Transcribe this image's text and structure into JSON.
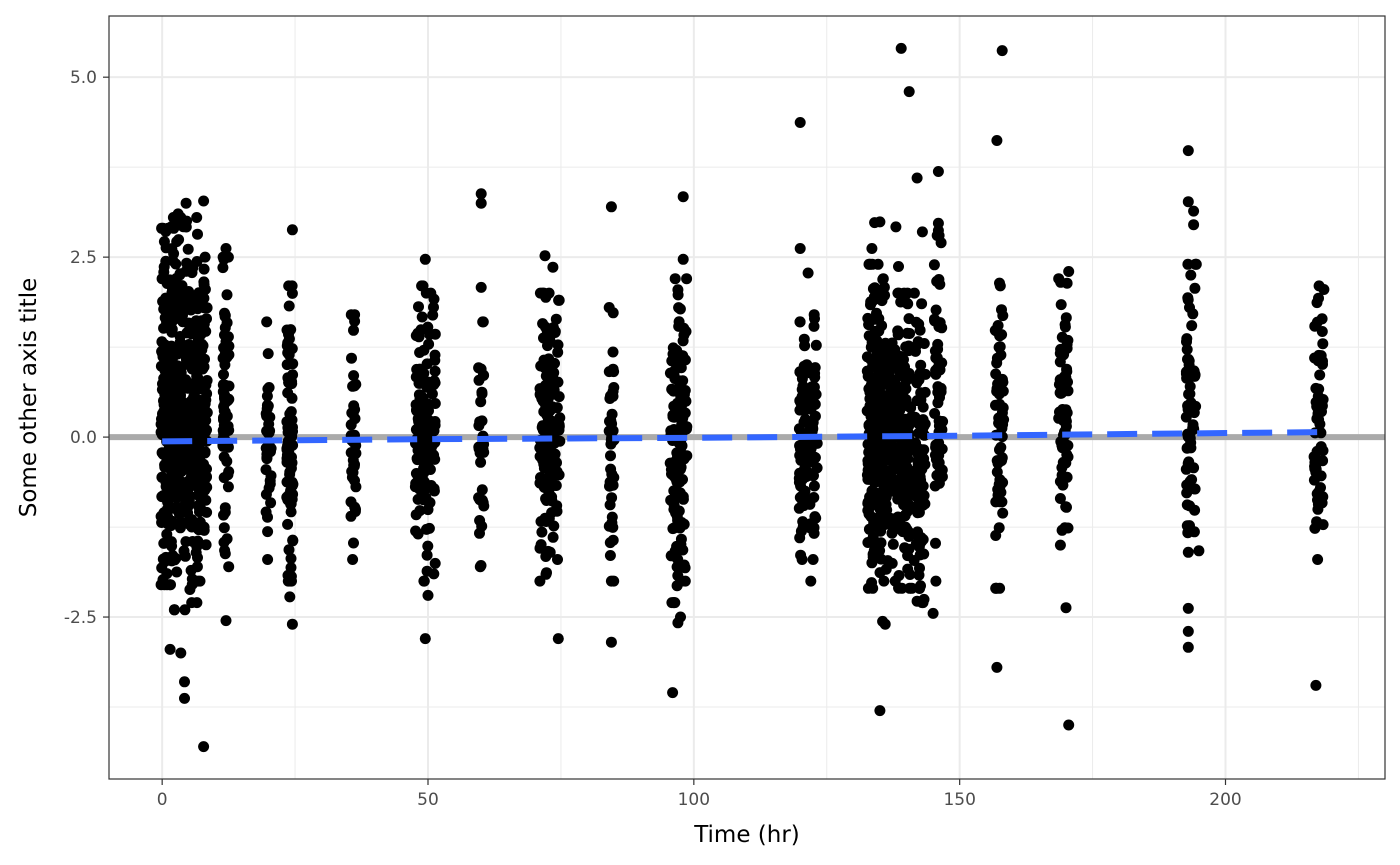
{
  "chart_data": {
    "type": "scatter",
    "xlabel": "Time (hr)",
    "ylabel": "Some other axis title",
    "xlim": [
      -10,
      230
    ],
    "ylim": [
      -4.75,
      5.85
    ],
    "x_ticks": [
      0,
      50,
      100,
      150,
      200
    ],
    "x_tick_labels": [
      "0",
      "50",
      "100",
      "150",
      "200"
    ],
    "y_ticks": [
      -2.5,
      0,
      2.5,
      5
    ],
    "y_tick_labels": [
      "-2.5",
      "0.0",
      "2.5",
      "5.0"
    ],
    "x_minor_ticks": [
      25,
      75,
      125,
      175,
      225
    ],
    "y_minor_ticks": [
      -3.75,
      -1.25,
      1.25,
      3.75
    ],
    "grid": true,
    "colors": {
      "points": "#000000",
      "reference_line": "#aaaaaa",
      "trend_line": "#3366ff",
      "grid": "#ebebeb",
      "panel_border": "#333333"
    },
    "reference_line": {
      "y": 0
    },
    "trend_line": {
      "style": "dashed",
      "x": [
        0,
        50,
        100,
        150,
        218
      ],
      "y": [
        -0.06,
        -0.03,
        -0.01,
        0.02,
        0.07
      ]
    },
    "clusters": [
      {
        "x": 1,
        "spread": 1.2,
        "n": 170,
        "ymin": -2.05,
        "ymax": 2.9
      },
      {
        "x": 3,
        "spread": 1.3,
        "n": 170,
        "ymin": -2.4,
        "ymax": 3.05
      },
      {
        "x": 5.5,
        "spread": 1.3,
        "n": 150,
        "ymin": -2.3,
        "ymax": 3.0
      },
      {
        "x": 7.5,
        "spread": 1.0,
        "n": 110,
        "ymin": -2.0,
        "ymax": 2.5
      },
      {
        "x": 12,
        "spread": 0.6,
        "n": 70,
        "ymin": -1.8,
        "ymax": 2.5
      },
      {
        "x": 20,
        "spread": 0.5,
        "n": 35,
        "ymin": -1.7,
        "ymax": 1.6
      },
      {
        "x": 24,
        "spread": 0.6,
        "n": 90,
        "ymin": -2.0,
        "ymax": 2.1
      },
      {
        "x": 36,
        "spread": 0.5,
        "n": 45,
        "ymin": -1.7,
        "ymax": 1.7
      },
      {
        "x": 48.5,
        "spread": 0.9,
        "n": 90,
        "ymin": -2.0,
        "ymax": 2.1
      },
      {
        "x": 50.5,
        "spread": 0.9,
        "n": 70,
        "ymin": -1.9,
        "ymax": 2.0
      },
      {
        "x": 60,
        "spread": 0.5,
        "n": 35,
        "ymin": -1.8,
        "ymax": 1.6
      },
      {
        "x": 72,
        "spread": 1.0,
        "n": 100,
        "ymin": -2.0,
        "ymax": 2.0
      },
      {
        "x": 74,
        "spread": 0.8,
        "n": 50,
        "ymin": -1.7,
        "ymax": 1.9
      },
      {
        "x": 84.5,
        "spread": 0.5,
        "n": 40,
        "ymin": -2.0,
        "ymax": 1.8
      },
      {
        "x": 96.5,
        "spread": 1.0,
        "n": 90,
        "ymin": -2.3,
        "ymax": 2.2
      },
      {
        "x": 98,
        "spread": 0.7,
        "n": 50,
        "ymin": -2.0,
        "ymax": 2.2
      },
      {
        "x": 120.5,
        "spread": 0.8,
        "n": 70,
        "ymin": -1.7,
        "ymax": 1.6
      },
      {
        "x": 122.5,
        "spread": 0.7,
        "n": 45,
        "ymin": -1.7,
        "ymax": 1.7
      },
      {
        "x": 134,
        "spread": 1.4,
        "n": 170,
        "ymin": -2.1,
        "ymax": 2.4
      },
      {
        "x": 136.5,
        "spread": 1.4,
        "n": 160,
        "ymin": -2.0,
        "ymax": 2.2
      },
      {
        "x": 139.5,
        "spread": 1.3,
        "n": 150,
        "ymin": -2.1,
        "ymax": 2.0
      },
      {
        "x": 142.5,
        "spread": 1.1,
        "n": 90,
        "ymin": -2.3,
        "ymax": 2.0
      },
      {
        "x": 146,
        "spread": 0.8,
        "n": 60,
        "ymin": -2.0,
        "ymax": 2.8
      },
      {
        "x": 157.5,
        "spread": 0.8,
        "n": 60,
        "ymin": -2.1,
        "ymax": 2.1
      },
      {
        "x": 169.5,
        "spread": 0.9,
        "n": 70,
        "ymin": -1.5,
        "ymax": 2.2
      },
      {
        "x": 193.5,
        "spread": 0.9,
        "n": 70,
        "ymin": -1.6,
        "ymax": 2.4
      },
      {
        "x": 217.5,
        "spread": 0.9,
        "n": 60,
        "ymin": -1.7,
        "ymax": 2.1
      }
    ],
    "outliers": [
      [
        1.5,
        -2.95
      ],
      [
        3.5,
        -3.0
      ],
      [
        4.2,
        -3.4
      ],
      [
        4.2,
        -3.63
      ],
      [
        7.8,
        -4.3
      ],
      [
        2.0,
        2.45
      ],
      [
        4.5,
        3.25
      ],
      [
        7.8,
        3.28
      ],
      [
        3.0,
        3.1
      ],
      [
        6.5,
        3.05
      ],
      [
        24.5,
        2.88
      ],
      [
        24.5,
        -2.6
      ],
      [
        12,
        -2.55
      ],
      [
        12,
        2.62
      ],
      [
        24,
        -2.22
      ],
      [
        49.5,
        2.47
      ],
      [
        49.5,
        -2.8
      ],
      [
        50,
        -2.2
      ],
      [
        60,
        3.38
      ],
      [
        60,
        3.25
      ],
      [
        60,
        2.08
      ],
      [
        72,
        2.52
      ],
      [
        73.5,
        2.36
      ],
      [
        74.5,
        -2.8
      ],
      [
        84.5,
        3.2
      ],
      [
        84.5,
        -2.85
      ],
      [
        84.5,
        -2.0
      ],
      [
        96,
        -3.55
      ],
      [
        98,
        3.34
      ],
      [
        98,
        2.47
      ],
      [
        97,
        -2.58
      ],
      [
        97.5,
        -2.5
      ],
      [
        120,
        4.37
      ],
      [
        120,
        2.62
      ],
      [
        121.5,
        2.28
      ],
      [
        122,
        -2.0
      ],
      [
        133.5,
        2.62
      ],
      [
        134,
        2.98
      ],
      [
        135,
        2.99
      ],
      [
        135,
        -3.8
      ],
      [
        136,
        -2.6
      ],
      [
        135.5,
        -2.56
      ],
      [
        138,
        2.92
      ],
      [
        138.5,
        2.37
      ],
      [
        139,
        5.4
      ],
      [
        140.5,
        4.8
      ],
      [
        142,
        3.6
      ],
      [
        143,
        2.85
      ],
      [
        141,
        -2.1
      ],
      [
        142,
        -2.28
      ],
      [
        145,
        -2.45
      ],
      [
        146,
        3.69
      ],
      [
        146,
        2.97
      ],
      [
        146,
        2.87
      ],
      [
        146.5,
        2.7
      ],
      [
        157,
        4.12
      ],
      [
        158,
        5.37
      ],
      [
        157,
        -3.2
      ],
      [
        157.5,
        2.14
      ],
      [
        170,
        -2.37
      ],
      [
        170.5,
        -4.0
      ],
      [
        170.5,
        2.3
      ],
      [
        169,
        2.15
      ],
      [
        193,
        3.98
      ],
      [
        193,
        3.27
      ],
      [
        194,
        3.14
      ],
      [
        194,
        2.95
      ],
      [
        194.5,
        2.4
      ],
      [
        193,
        -2.38
      ],
      [
        193,
        -2.7
      ],
      [
        193,
        -2.92
      ],
      [
        195,
        -1.58
      ],
      [
        217,
        -3.45
      ],
      [
        218.5,
        2.05
      ],
      [
        217.5,
        1.93
      ]
    ]
  }
}
